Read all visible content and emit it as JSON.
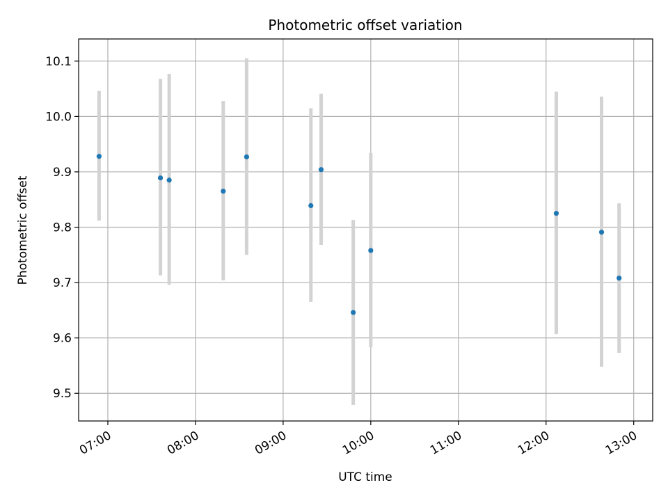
{
  "chart_data": {
    "type": "scatter",
    "title": "Photometric offset variation",
    "xlabel": "UTC time",
    "ylabel": "Photometric offset",
    "x_ticks": [
      "07:00",
      "08:00",
      "09:00",
      "10:00",
      "11:00",
      "12:00",
      "13:00"
    ],
    "y_ticks": [
      "9.5",
      "9.6",
      "9.7",
      "9.8",
      "9.9",
      "10.0",
      "10.1"
    ],
    "xlim": [
      "06:40",
      "13:13"
    ],
    "ylim": [
      9.45,
      10.14
    ],
    "grid": true,
    "series": [
      {
        "x": [
          "06:54",
          "07:36",
          "07:42",
          "08:19",
          "08:35",
          "09:19",
          "09:26",
          "09:48",
          "10:00",
          "12:07",
          "12:38",
          "12:50"
        ],
        "y": [
          9.928,
          9.889,
          9.885,
          9.865,
          9.927,
          9.839,
          9.904,
          9.646,
          9.758,
          9.825,
          9.791,
          9.708
        ],
        "y_low": [
          9.812,
          9.713,
          9.696,
          9.704,
          9.75,
          9.665,
          9.768,
          9.479,
          9.583,
          9.607,
          9.548,
          9.573
        ],
        "y_high": [
          10.046,
          10.068,
          10.077,
          10.028,
          10.105,
          10.015,
          10.041,
          9.813,
          9.934,
          10.045,
          10.036,
          9.843
        ]
      }
    ],
    "colors": {
      "marker": "#1f77b4",
      "errorbar": "#d3d3d3",
      "grid": "#b0b0b0"
    }
  }
}
